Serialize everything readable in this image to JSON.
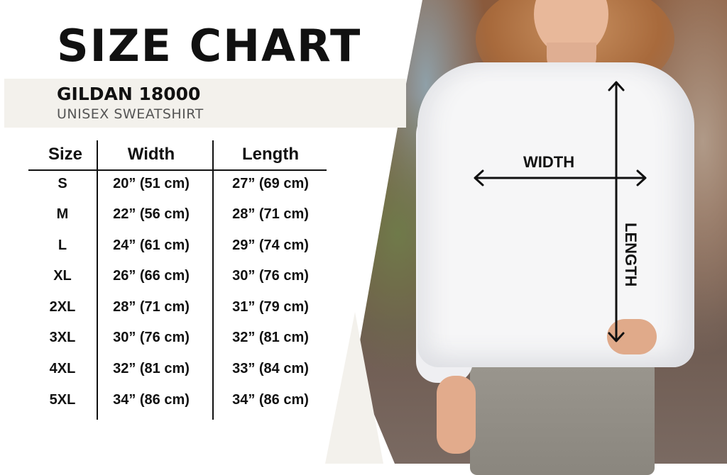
{
  "title": "SIZE CHART",
  "product": {
    "brand": "GILDAN 18000",
    "type": "UNISEX SWEATSHIRT"
  },
  "table": {
    "headers": [
      "Size",
      "Width",
      "Length"
    ],
    "rows": [
      [
        "S",
        "20” (51 cm)",
        "27” (69 cm)"
      ],
      [
        "M",
        "22” (56 cm)",
        "28” (71 cm)"
      ],
      [
        "L",
        "24” (61 cm)",
        "29” (74 cm)"
      ],
      [
        "XL",
        "26” (66 cm)",
        "30” (76 cm)"
      ],
      [
        "2XL",
        "28” (71 cm)",
        "31” (79 cm)"
      ],
      [
        "3XL",
        "30” (76 cm)",
        "32” (81 cm)"
      ],
      [
        "4XL",
        "32” (81 cm)",
        "33” (84 cm)"
      ],
      [
        "5XL",
        "34” (86 cm)",
        "34” (86 cm)"
      ]
    ]
  },
  "photo": {
    "width_label": "WIDTH",
    "length_label": "LENGTH"
  }
}
